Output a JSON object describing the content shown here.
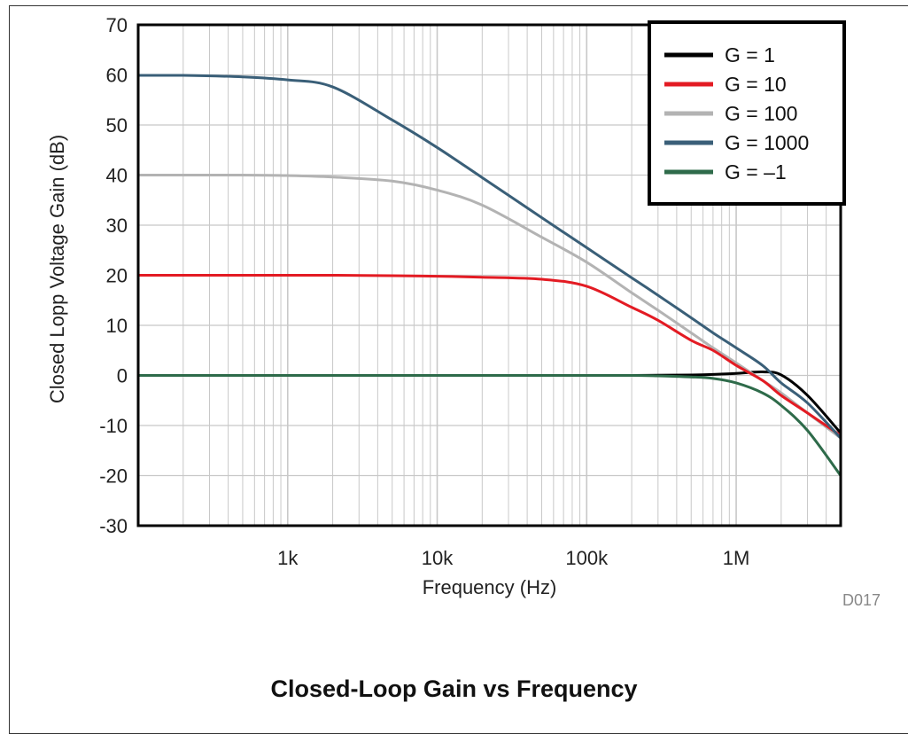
{
  "figure_id": "D017",
  "caption": "Closed-Loop Gain vs Frequency",
  "colors": {
    "g1": "#000000",
    "g10": "#e31b23",
    "g100": "#b3b3b3",
    "g1000": "#3a5f78",
    "gneg1": "#2e6b4a",
    "grid": "#c8c8c8"
  },
  "chart_data": {
    "type": "line",
    "title": "",
    "xlabel": "Frequency (Hz)",
    "ylabel": "Closed Lopp Voltage Gain (dB)",
    "x_scale": "log",
    "xlim": [
      100,
      5000000
    ],
    "ylim": [
      -30,
      70
    ],
    "x_ticks": [
      1000,
      10000,
      100000,
      1000000
    ],
    "x_tick_labels": [
      "1k",
      "10k",
      "100k",
      "1M"
    ],
    "y_ticks": [
      -30,
      -20,
      -10,
      0,
      10,
      20,
      30,
      40,
      50,
      60,
      70
    ],
    "y_tick_labels": [
      "-30",
      "-20",
      "-10",
      "0",
      "10",
      "20",
      "30",
      "40",
      "50",
      "60",
      "70"
    ],
    "grid": true,
    "legend_position": "top-right",
    "x": [
      100,
      200,
      500,
      1000,
      2000,
      5000,
      10000,
      20000,
      50000,
      100000,
      200000,
      300000,
      500000,
      700000,
      1000000,
      1500000,
      2000000,
      3000000,
      5000000
    ],
    "series": [
      {
        "name": "G = 1",
        "color_key": "g1",
        "values": [
          0,
          0,
          0,
          0,
          0,
          0,
          0,
          0,
          0,
          0,
          0,
          0.05,
          0.1,
          0.2,
          0.4,
          0.7,
          0.1,
          -4,
          -11.5
        ]
      },
      {
        "name": "G = 10",
        "color_key": "g10",
        "values": [
          20,
          20,
          20,
          20,
          20,
          19.9,
          19.8,
          19.6,
          19.2,
          17.8,
          13.6,
          11,
          7,
          5,
          2,
          -1,
          -4,
          -7.5,
          -12
        ]
      },
      {
        "name": "G = 100",
        "color_key": "g100",
        "values": [
          40,
          40,
          40,
          39.9,
          39.6,
          38.8,
          37,
          34,
          27.6,
          22.6,
          16.5,
          13,
          8.5,
          5.5,
          2.5,
          -1,
          -3.5,
          -7.5,
          -12.5
        ]
      },
      {
        "name": "G = 1000",
        "color_key": "g1000",
        "values": [
          59.9,
          59.9,
          59.6,
          59,
          57.6,
          51,
          45.5,
          39.5,
          31.5,
          25.5,
          19.5,
          16,
          11.5,
          8.5,
          5.5,
          2,
          -1.5,
          -5.5,
          -12.5
        ]
      },
      {
        "name": "G = –1",
        "color_key": "gneg1",
        "values": [
          0,
          0,
          0,
          0,
          0,
          0,
          0,
          0,
          0,
          0,
          0,
          -0.1,
          -0.3,
          -0.6,
          -1.5,
          -3.5,
          -6,
          -11,
          -20
        ]
      }
    ]
  }
}
